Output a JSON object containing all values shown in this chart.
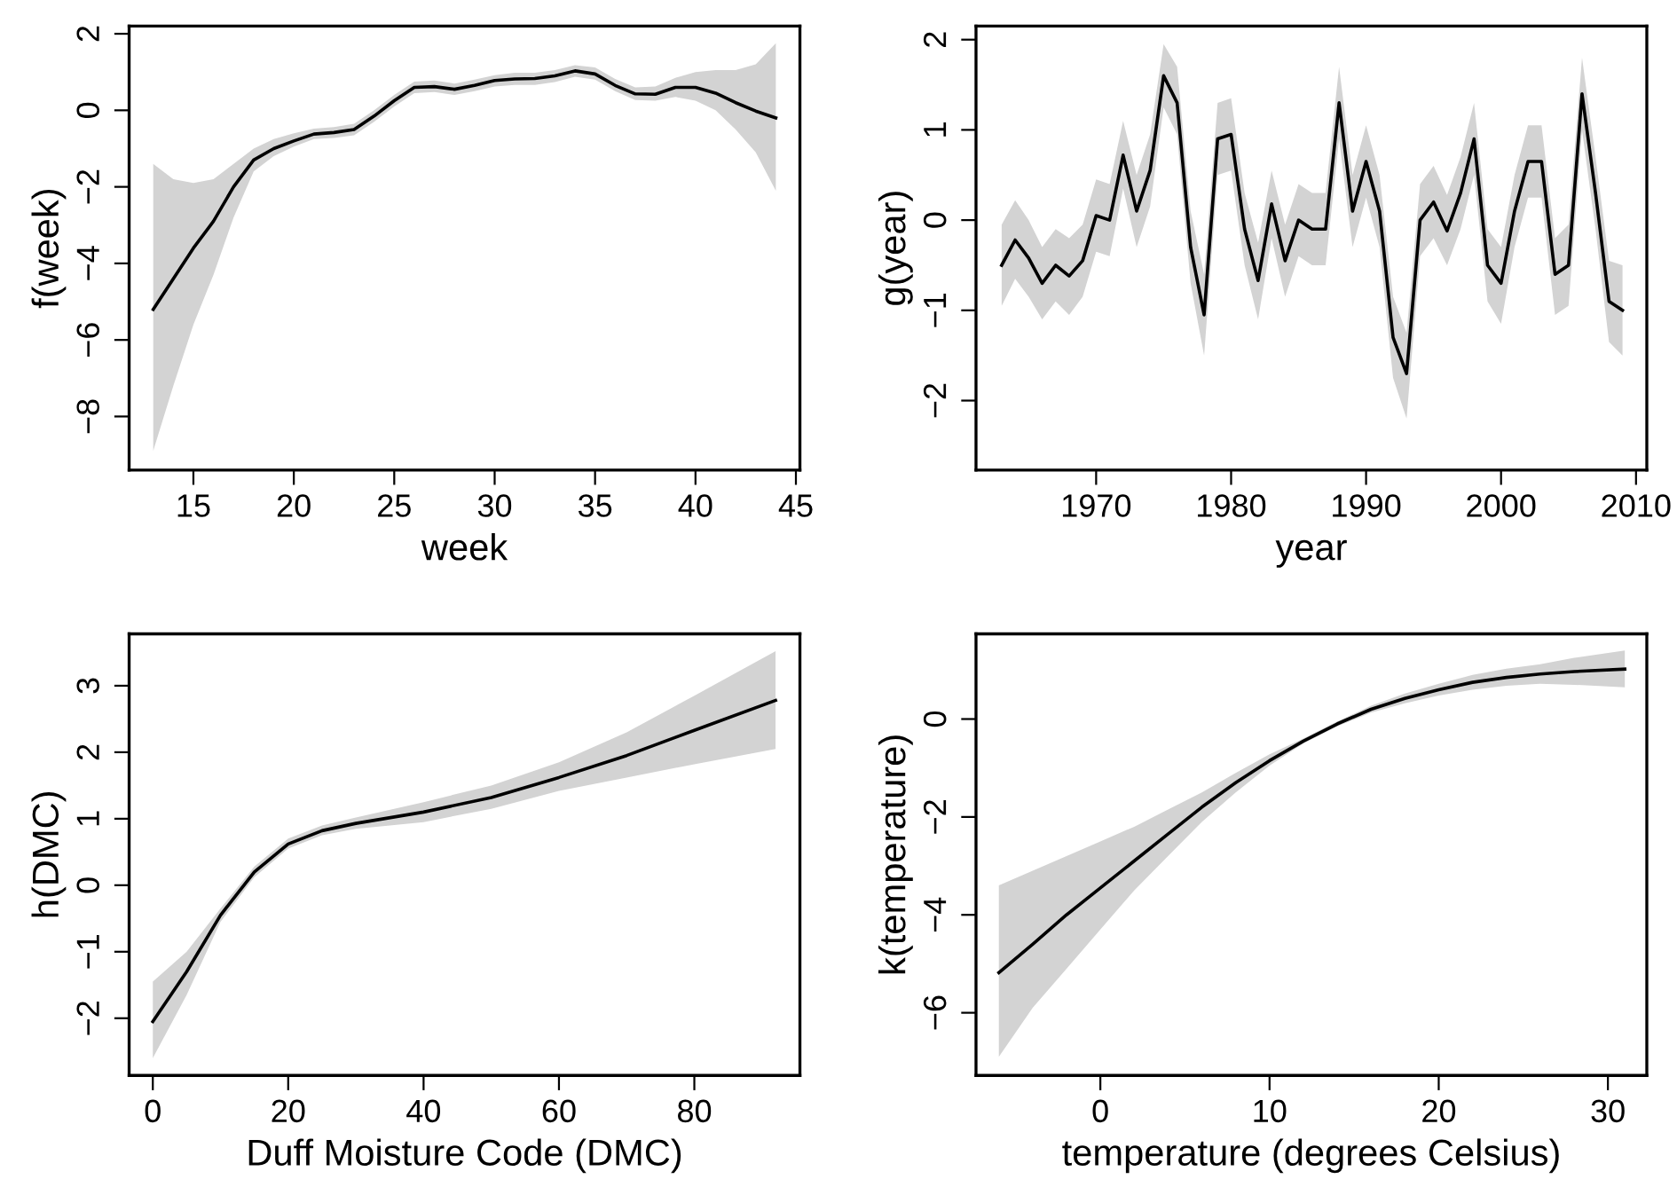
{
  "chart_data": [
    {
      "type": "line",
      "xlabel": "week",
      "ylabel": "f(week)",
      "xlim": [
        11.8,
        45.2
      ],
      "ylim": [
        -9.4,
        2.2
      ],
      "xticks": [
        15,
        20,
        25,
        30,
        35,
        40,
        45
      ],
      "yticks": [
        -8,
        -6,
        -4,
        -2,
        0,
        2
      ],
      "grid": false,
      "x": [
        13,
        14,
        15,
        16,
        17,
        18,
        19,
        20,
        21,
        22,
        23,
        24,
        25,
        26,
        27,
        28,
        29,
        30,
        31,
        32,
        33,
        34,
        35,
        36,
        37,
        38,
        39,
        40,
        41,
        42,
        43,
        44
      ],
      "series": [
        {
          "color": "#000000",
          "values": [
            -5.2,
            -4.4,
            -3.6,
            -2.9,
            -2.0,
            -1.3,
            -1.0,
            -0.8,
            -0.62,
            -0.58,
            -0.5,
            -0.15,
            0.25,
            0.6,
            0.62,
            0.55,
            0.65,
            0.78,
            0.82,
            0.83,
            0.9,
            1.03,
            0.95,
            0.65,
            0.43,
            0.42,
            0.6,
            0.6,
            0.45,
            0.2,
            -0.02,
            -0.2
          ],
          "lower": [
            -8.9,
            -7.2,
            -5.6,
            -4.3,
            -2.8,
            -1.6,
            -1.2,
            -0.95,
            -0.75,
            -0.72,
            -0.65,
            -0.3,
            0.1,
            0.45,
            0.48,
            0.4,
            0.5,
            0.62,
            0.66,
            0.66,
            0.74,
            0.88,
            0.8,
            0.5,
            0.27,
            0.25,
            0.35,
            0.25,
            0.0,
            -0.5,
            -1.1,
            -2.1
          ],
          "upper": [
            -1.4,
            -1.8,
            -1.9,
            -1.8,
            -1.4,
            -1.0,
            -0.75,
            -0.6,
            -0.48,
            -0.44,
            -0.35,
            0.0,
            0.4,
            0.75,
            0.78,
            0.7,
            0.8,
            0.92,
            0.98,
            0.98,
            1.05,
            1.18,
            1.12,
            0.82,
            0.6,
            0.62,
            0.85,
            1.0,
            1.05,
            1.05,
            1.2,
            1.75
          ]
        }
      ]
    },
    {
      "type": "line",
      "xlabel": "year",
      "ylabel": "g(year)",
      "xlim": [
        1961.1,
        2010.8
      ],
      "ylim": [
        -2.77,
        2.15
      ],
      "xticks": [
        1970,
        1980,
        1990,
        2000,
        2010
      ],
      "yticks": [
        -2,
        -1,
        0,
        1,
        2
      ],
      "grid": false,
      "x": [
        1963,
        1964,
        1965,
        1966,
        1967,
        1968,
        1969,
        1970,
        1971,
        1972,
        1973,
        1974,
        1975,
        1976,
        1977,
        1978,
        1979,
        1980,
        1981,
        1982,
        1983,
        1984,
        1985,
        1986,
        1987,
        1988,
        1989,
        1990,
        1991,
        1992,
        1993,
        1994,
        1995,
        1996,
        1997,
        1998,
        1999,
        2000,
        2001,
        2002,
        2003,
        2004,
        2005,
        2006,
        2007,
        2008,
        2009
      ],
      "series": [
        {
          "color": "#000000",
          "values": [
            -0.5,
            -0.22,
            -0.42,
            -0.7,
            -0.5,
            -0.62,
            -0.45,
            0.05,
            0.0,
            0.72,
            0.1,
            0.55,
            1.6,
            1.3,
            -0.3,
            -1.05,
            0.9,
            0.95,
            -0.1,
            -0.67,
            0.18,
            -0.45,
            0.0,
            -0.1,
            -0.1,
            1.3,
            0.1,
            0.65,
            0.1,
            -1.3,
            -1.7,
            0.0,
            0.2,
            -0.12,
            0.3,
            0.9,
            -0.5,
            -0.7,
            0.1,
            0.65,
            0.65,
            -0.6,
            -0.5,
            1.4,
            0.3,
            -0.9,
            -1.0
          ],
          "lower": [
            -0.95,
            -0.65,
            -0.85,
            -1.1,
            -0.9,
            -1.05,
            -0.85,
            -0.35,
            -0.4,
            0.35,
            -0.3,
            0.15,
            1.25,
            0.95,
            -0.7,
            -1.5,
            0.5,
            0.55,
            -0.5,
            -1.1,
            -0.2,
            -0.85,
            -0.4,
            -0.5,
            -0.5,
            0.9,
            -0.3,
            0.25,
            -0.3,
            -1.75,
            -2.2,
            -0.4,
            -0.2,
            -0.5,
            -0.1,
            0.5,
            -0.9,
            -1.15,
            -0.3,
            0.25,
            0.25,
            -1.05,
            -0.95,
            1.0,
            -0.1,
            -1.35,
            -1.5
          ],
          "upper": [
            -0.05,
            0.22,
            0.0,
            -0.3,
            -0.1,
            -0.2,
            -0.05,
            0.45,
            0.4,
            1.1,
            0.5,
            0.95,
            1.95,
            1.7,
            0.1,
            -0.6,
            1.3,
            1.35,
            0.3,
            -0.25,
            0.55,
            -0.05,
            0.4,
            0.3,
            0.3,
            1.7,
            0.5,
            1.05,
            0.5,
            -0.85,
            -1.25,
            0.4,
            0.6,
            0.28,
            0.7,
            1.3,
            -0.1,
            -0.3,
            0.5,
            1.05,
            1.05,
            -0.2,
            -0.05,
            1.8,
            0.7,
            -0.45,
            -0.5
          ]
        }
      ]
    },
    {
      "type": "line",
      "xlabel": "Duff Moisture Code (DMC)",
      "ylabel": "h(DMC)",
      "xlim": [
        -3.5,
        95.6
      ],
      "ylim": [
        -2.86,
        3.78
      ],
      "xticks": [
        0,
        20,
        40,
        60,
        80
      ],
      "yticks": [
        -2,
        -1,
        0,
        1,
        2,
        3
      ],
      "grid": false,
      "x": [
        0,
        5,
        10,
        15,
        20,
        25,
        30,
        40,
        50,
        60,
        70,
        80,
        92
      ],
      "series": [
        {
          "color": "#000000",
          "values": [
            -2.05,
            -1.3,
            -0.45,
            0.2,
            0.62,
            0.82,
            0.93,
            1.1,
            1.32,
            1.62,
            1.95,
            2.33,
            2.78
          ],
          "lower": [
            -2.6,
            -1.65,
            -0.55,
            0.12,
            0.55,
            0.75,
            0.85,
            0.95,
            1.15,
            1.42,
            1.62,
            1.82,
            2.05
          ],
          "upper": [
            -1.45,
            -1.0,
            -0.35,
            0.28,
            0.7,
            0.9,
            1.02,
            1.25,
            1.5,
            1.85,
            2.3,
            2.85,
            3.52
          ]
        }
      ]
    },
    {
      "type": "line",
      "xlabel": "temperature (degrees Celsius)",
      "ylabel": "k(temperature)",
      "xlim": [
        -7.35,
        32.3
      ],
      "ylim": [
        -7.28,
        1.74
      ],
      "xticks": [
        0,
        10,
        20,
        30
      ],
      "yticks": [
        -6,
        -4,
        -2,
        0
      ],
      "grid": false,
      "x": [
        -6,
        -4,
        -2,
        0,
        2,
        4,
        6,
        8,
        10,
        12,
        14,
        16,
        18,
        20,
        22,
        24,
        26,
        28,
        31
      ],
      "series": [
        {
          "color": "#000000",
          "values": [
            -5.18,
            -4.6,
            -4.0,
            -3.45,
            -2.9,
            -2.35,
            -1.8,
            -1.3,
            -0.85,
            -0.45,
            -0.1,
            0.2,
            0.42,
            0.6,
            0.75,
            0.85,
            0.92,
            0.97,
            1.02
          ],
          "lower": [
            -6.9,
            -5.9,
            -5.1,
            -4.3,
            -3.5,
            -2.8,
            -2.1,
            -1.5,
            -0.95,
            -0.5,
            -0.15,
            0.13,
            0.32,
            0.48,
            0.6,
            0.68,
            0.72,
            0.7,
            0.65
          ],
          "upper": [
            -3.4,
            -3.1,
            -2.8,
            -2.5,
            -2.2,
            -1.85,
            -1.5,
            -1.1,
            -0.72,
            -0.4,
            -0.05,
            0.27,
            0.52,
            0.72,
            0.9,
            1.03,
            1.12,
            1.25,
            1.4
          ]
        }
      ]
    }
  ]
}
